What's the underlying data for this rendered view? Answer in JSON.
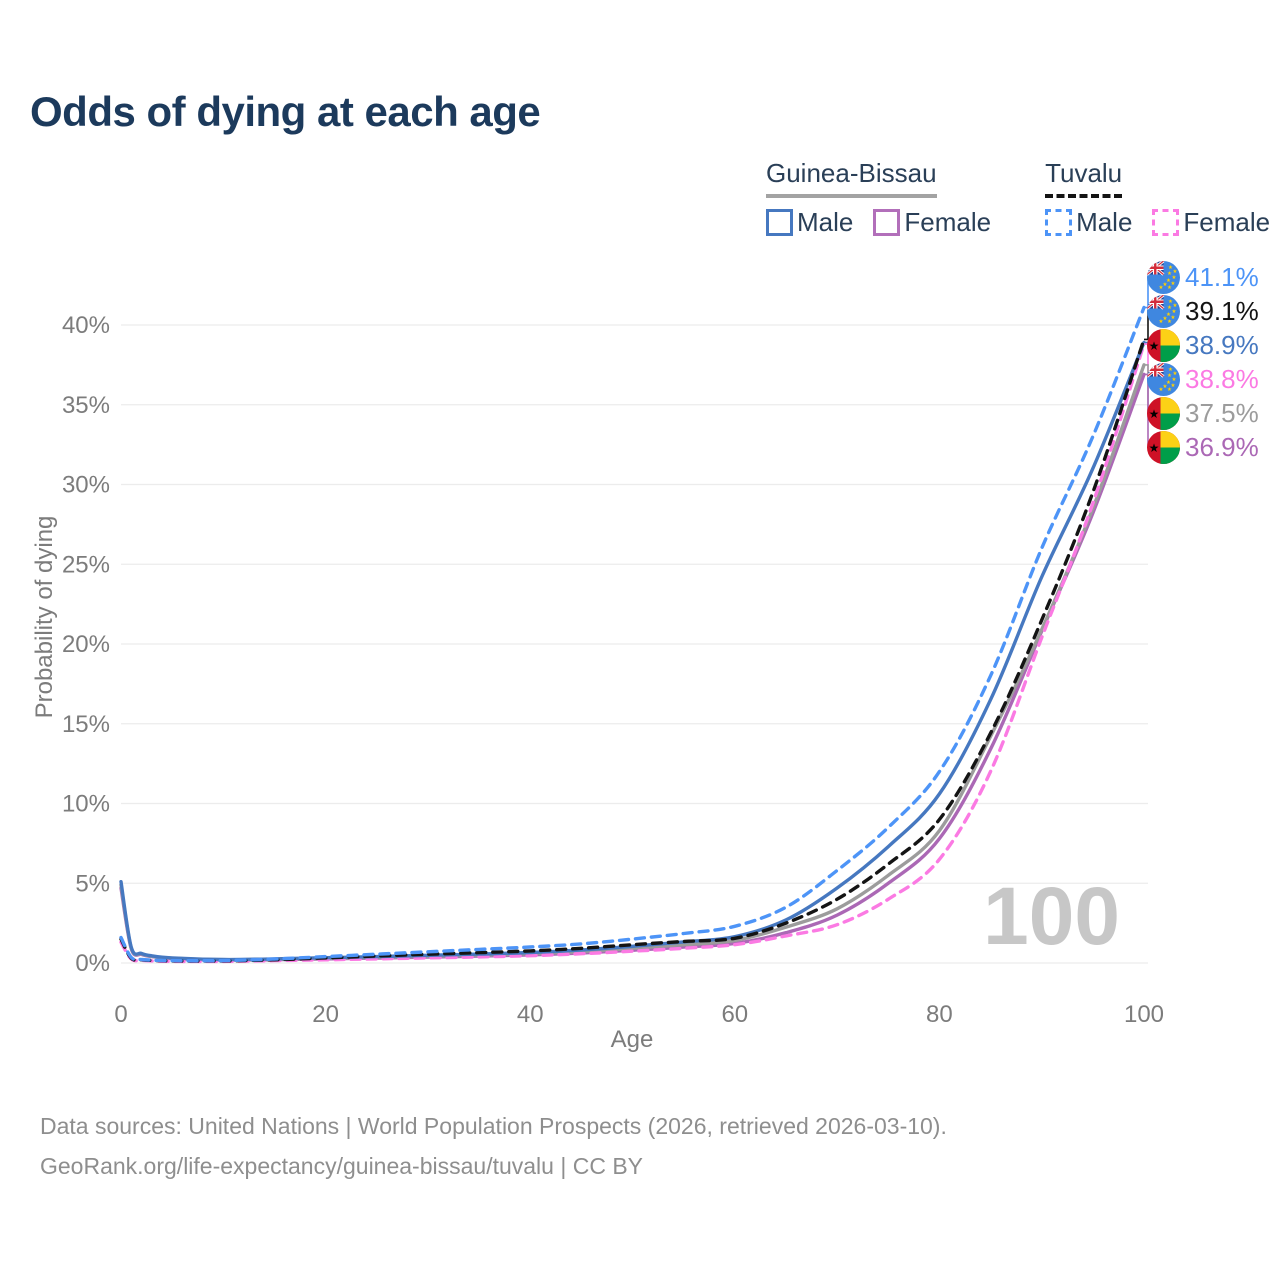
{
  "title": "Odds of dying at each age",
  "legend": {
    "groups": [
      {
        "id": "guinea-bissau",
        "label": "Guinea-Bissau",
        "line_style": "solid",
        "underline_color": "#a3a3a3",
        "items": [
          {
            "label": "Male",
            "color": "#4678c0"
          },
          {
            "label": "Female",
            "color": "#b26fba"
          }
        ]
      },
      {
        "id": "tuvalu",
        "label": "Tuvalu",
        "line_style": "dashed",
        "underline_color": "#141414",
        "items": [
          {
            "label": "Male",
            "color": "#4d94f7"
          },
          {
            "label": "Female",
            "color": "#fb7ae3"
          }
        ]
      }
    ]
  },
  "watermark": "100",
  "footer": {
    "line1": "Data sources: United Nations | World Population Prospects (2026, retrieved 2026-03-10).",
    "line2": "GeoRank.org/life-expectancy/guinea-bissau/tuvalu | CC BY"
  },
  "chart_data": {
    "type": "line",
    "title": "Odds of dying at each age",
    "xlabel": "Age",
    "ylabel": "Probability of dying",
    "xlim": [
      0,
      100
    ],
    "ylim_percent": [
      0,
      41.5
    ],
    "grid": "horizontal-only",
    "legend_position": "top-right",
    "x_ticks": [
      0,
      20,
      40,
      60,
      80,
      100
    ],
    "y_ticks_percent": [
      0,
      5,
      10,
      15,
      20,
      25,
      30,
      35,
      40
    ],
    "ages": [
      0,
      1,
      2,
      3,
      5,
      10,
      15,
      20,
      25,
      30,
      35,
      40,
      45,
      50,
      55,
      60,
      65,
      70,
      75,
      80,
      85,
      90,
      95,
      100
    ],
    "series": [
      {
        "name": "Tuvalu Male",
        "country": "Tuvalu",
        "sex": "male",
        "color": "#4d94f7",
        "dash": true,
        "flag": "tuvalu",
        "end_label": "41.1%",
        "values_percent": [
          1.6,
          0.35,
          0.22,
          0.18,
          0.15,
          0.15,
          0.25,
          0.4,
          0.55,
          0.7,
          0.85,
          1.0,
          1.2,
          1.5,
          1.85,
          2.3,
          3.5,
          5.8,
          8.5,
          12.0,
          18.0,
          26.0,
          33.0,
          41.1
        ]
      },
      {
        "name": "Tuvalu Both sexes",
        "country": "Tuvalu",
        "sex": "both",
        "color": "#141414",
        "dash": true,
        "flag": "tuvalu",
        "end_label": "39.1%",
        "values_percent": [
          1.5,
          0.3,
          0.2,
          0.16,
          0.13,
          0.13,
          0.2,
          0.32,
          0.44,
          0.55,
          0.65,
          0.76,
          0.92,
          1.15,
          1.35,
          1.55,
          2.5,
          4.0,
          6.2,
          9.0,
          14.4,
          21.5,
          29.5,
          39.1
        ]
      },
      {
        "name": "Guinea-Bissau Male",
        "country": "Guinea-Bissau",
        "sex": "male",
        "color": "#4678c0",
        "dash": false,
        "flag": "guinea-bissau",
        "end_label": "38.9%",
        "values_percent": [
          5.1,
          1.0,
          0.6,
          0.45,
          0.32,
          0.22,
          0.26,
          0.33,
          0.4,
          0.48,
          0.56,
          0.66,
          0.82,
          1.05,
          1.32,
          1.65,
          2.7,
          4.7,
          7.3,
          10.6,
          16.5,
          24.2,
          31.0,
          38.9
        ]
      },
      {
        "name": "Tuvalu Female",
        "country": "Tuvalu",
        "sex": "female",
        "color": "#fb7ae3",
        "dash": true,
        "flag": "tuvalu",
        "end_label": "38.8%",
        "values_percent": [
          1.3,
          0.25,
          0.17,
          0.13,
          0.1,
          0.1,
          0.15,
          0.2,
          0.26,
          0.32,
          0.38,
          0.46,
          0.58,
          0.74,
          0.92,
          1.15,
          1.7,
          2.4,
          4.0,
          6.5,
          12.0,
          20.4,
          28.8,
          38.8
        ]
      },
      {
        "name": "Guinea-Bissau Both sexes",
        "country": "Guinea-Bissau",
        "sex": "both",
        "color": "#9c9c9c",
        "dash": false,
        "flag": "guinea-bissau",
        "end_label": "37.5%",
        "values_percent": [
          4.9,
          0.95,
          0.57,
          0.42,
          0.3,
          0.2,
          0.23,
          0.29,
          0.35,
          0.42,
          0.49,
          0.58,
          0.72,
          0.92,
          1.15,
          1.42,
          2.25,
          3.4,
          5.5,
          8.3,
          14.2,
          20.9,
          28.5,
          37.5
        ]
      },
      {
        "name": "Guinea-Bissau Female",
        "country": "Guinea-Bissau",
        "sex": "female",
        "color": "#ab68b5",
        "dash": false,
        "flag": "guinea-bissau",
        "end_label": "36.9%",
        "values_percent": [
          4.7,
          0.9,
          0.54,
          0.4,
          0.28,
          0.18,
          0.21,
          0.26,
          0.31,
          0.37,
          0.43,
          0.51,
          0.63,
          0.8,
          1.0,
          1.22,
          1.9,
          3.0,
          5.0,
          7.8,
          13.4,
          20.8,
          28.2,
          36.9
        ]
      }
    ]
  }
}
